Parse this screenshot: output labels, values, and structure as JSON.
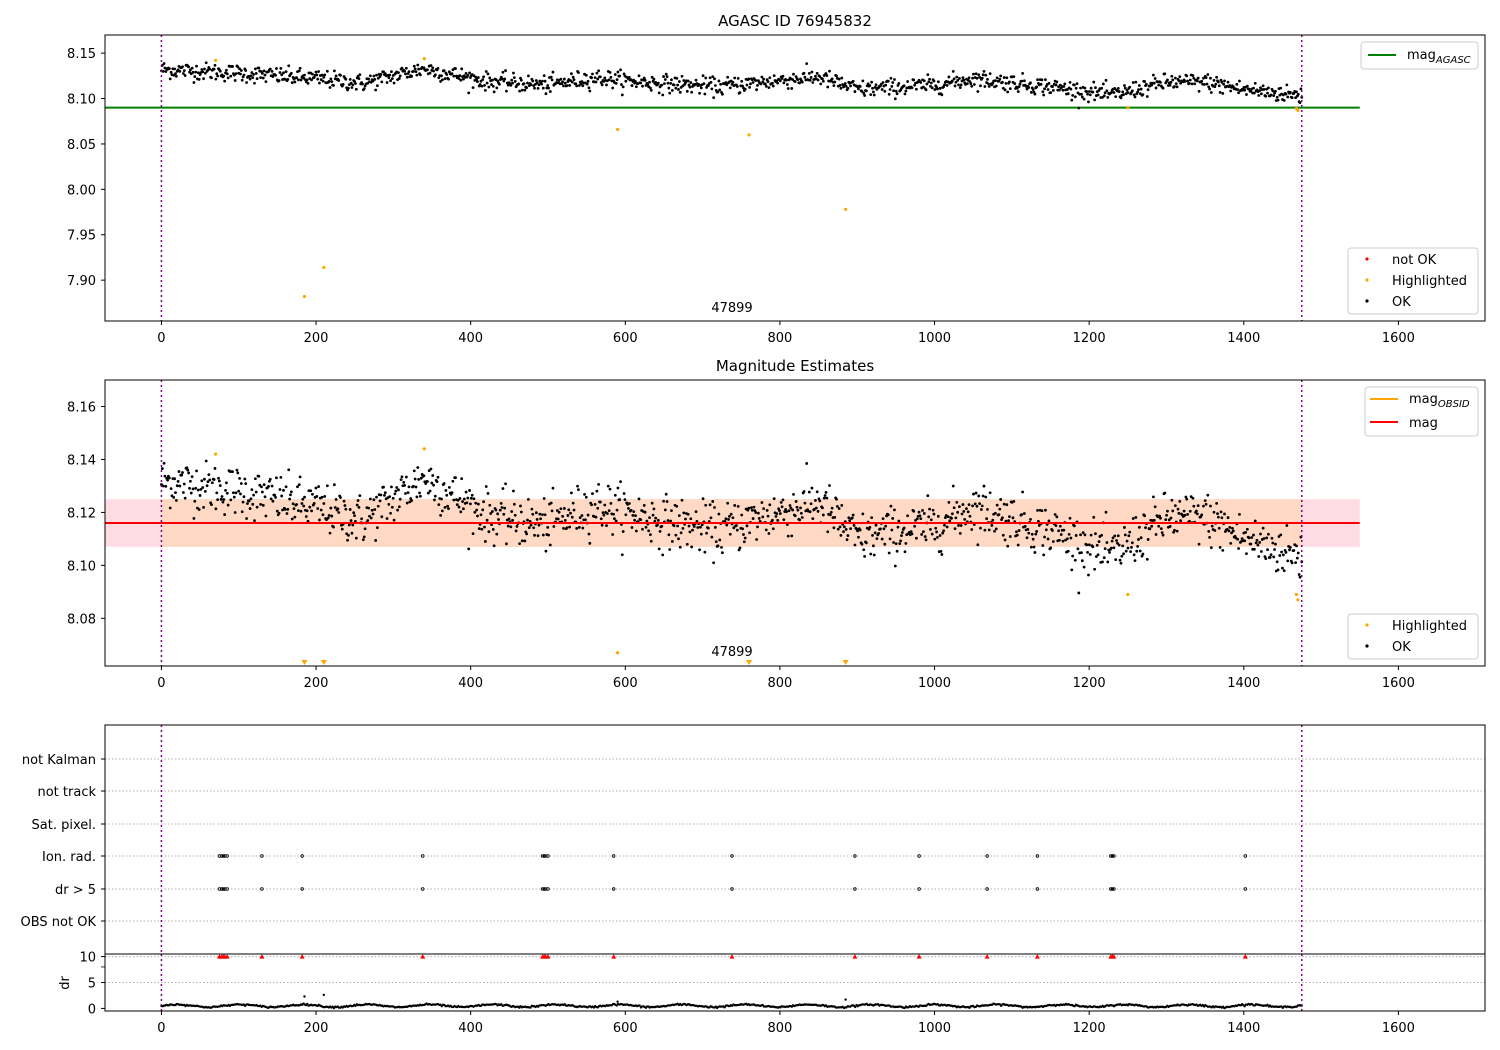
{
  "chart_data": [
    {
      "type": "scatter",
      "title": "AGASC ID 76945832",
      "xlim": [
        -73,
        1712
      ],
      "ylim": [
        7.855,
        8.17
      ],
      "xticks": [
        "0",
        "200",
        "400",
        "600",
        "800",
        "1000",
        "1200",
        "1400",
        "1600"
      ],
      "yticks": [
        "7.90",
        "7.95",
        "8.00",
        "8.05",
        "8.10",
        "8.15"
      ],
      "obsid_label": "47899",
      "vlines_x": [
        0,
        1475
      ],
      "hline": {
        "name": "mag_AGASC",
        "label_main": "mag",
        "label_sub": "AGASC",
        "y": 8.09,
        "x_range": [
          -73,
          1550
        ],
        "color": "#008000"
      },
      "legend_lines": [
        {
          "label_main": "mag",
          "label_sub": "AGASC",
          "color": "#008000"
        }
      ],
      "legend_points": [
        {
          "label": "not OK",
          "color": "#ff0000"
        },
        {
          "label": "Highlighted",
          "color": "#ffa500"
        },
        {
          "label": "OK",
          "color": "#000000"
        }
      ],
      "ok_trend": [
        [
          0,
          8.132
        ],
        [
          100,
          8.128
        ],
        [
          200,
          8.122
        ],
        [
          260,
          8.117
        ],
        [
          340,
          8.133
        ],
        [
          420,
          8.119
        ],
        [
          500,
          8.115
        ],
        [
          560,
          8.123
        ],
        [
          640,
          8.117
        ],
        [
          720,
          8.113
        ],
        [
          800,
          8.12
        ],
        [
          850,
          8.124
        ],
        [
          900,
          8.11
        ],
        [
          1000,
          8.115
        ],
        [
          1050,
          8.122
        ],
        [
          1150,
          8.113
        ],
        [
          1230,
          8.104
        ],
        [
          1300,
          8.118
        ],
        [
          1350,
          8.118
        ],
        [
          1400,
          8.11
        ],
        [
          1475,
          8.103
        ]
      ],
      "ok_scatter": 0.006,
      "ok_n": 1300,
      "highlighted": [
        [
          70,
          8.142
        ],
        [
          185,
          7.882
        ],
        [
          210,
          7.914
        ],
        [
          340,
          8.144
        ],
        [
          590,
          8.066
        ],
        [
          760,
          8.06
        ],
        [
          885,
          7.978
        ],
        [
          1250,
          8.09
        ],
        [
          1468,
          8.089
        ],
        [
          1470,
          8.087
        ]
      ]
    },
    {
      "type": "scatter",
      "title": "Magnitude Estimates",
      "xlim": [
        -73,
        1712
      ],
      "ylim": [
        8.062,
        8.17
      ],
      "xticks": [
        "0",
        "200",
        "400",
        "600",
        "800",
        "1000",
        "1200",
        "1400",
        "1600"
      ],
      "yticks": [
        "8.08",
        "8.10",
        "8.12",
        "8.14",
        "8.16"
      ],
      "obsid_label": "47899",
      "vlines_x": [
        0,
        1475
      ],
      "mag_line": {
        "y": 8.116,
        "color": "#ff0000"
      },
      "mag_obsid_line": {
        "y": 8.116,
        "color": "#ffa500"
      },
      "band_outer": {
        "ylo": 8.107,
        "yhi": 8.125,
        "x_range": [
          -73,
          1550
        ],
        "color": "#ffdce3"
      },
      "band_inner": {
        "ylo": 8.107,
        "yhi": 8.125,
        "x_range": [
          0,
          1475
        ],
        "color": "#ffd9c4"
      },
      "legend_lines": [
        {
          "label_main": "mag",
          "label_sub": "OBSID",
          "color": "#ffa500"
        },
        {
          "label_main": "mag",
          "label_sub": "",
          "color": "#ff0000"
        }
      ],
      "legend_points": [
        {
          "label": "Highlighted",
          "color": "#ffa500"
        },
        {
          "label": "OK",
          "color": "#000000"
        }
      ],
      "highlighted": [
        [
          70,
          8.142
        ],
        [
          340,
          8.144
        ],
        [
          590,
          8.067
        ],
        [
          1250,
          8.089
        ],
        [
          1468,
          8.089
        ],
        [
          1470,
          8.087
        ]
      ],
      "clipped_low_markers": [
        185,
        210,
        760,
        885
      ]
    },
    {
      "type": "scatter",
      "title": "",
      "xlim": [
        -73,
        1712
      ],
      "categories": [
        "not Kalman",
        "not track",
        "Sat. pixel.",
        "Ion. rad.",
        "dr > 5",
        "OBS not OK"
      ],
      "vlines_x": [
        0,
        1475
      ],
      "flag_times": [
        75,
        78,
        80,
        82,
        85,
        130,
        182,
        338,
        493,
        495,
        497,
        500,
        585,
        738,
        897,
        980,
        1068,
        1133,
        1228,
        1230,
        1232,
        1402
      ],
      "flagged_categories": [
        "Ion. rad.",
        "dr > 5"
      ]
    },
    {
      "type": "scatter",
      "title": "",
      "ylabel": "dr",
      "xlim": [
        -73,
        1712
      ],
      "ylim": [
        -0.5,
        10.5
      ],
      "xticks": [
        "0",
        "200",
        "400",
        "600",
        "800",
        "1000",
        "1200",
        "1400",
        "1600"
      ],
      "yticks": [
        "0",
        "5",
        "10"
      ],
      "dr_baseline": 0.5,
      "dr_outliers": [
        [
          185,
          2.3
        ],
        [
          210,
          2.6
        ],
        [
          590,
          1.3
        ],
        [
          885,
          1.7
        ]
      ],
      "dr_clipped_y": 10,
      "vlines_x": [
        0,
        1475
      ]
    }
  ]
}
